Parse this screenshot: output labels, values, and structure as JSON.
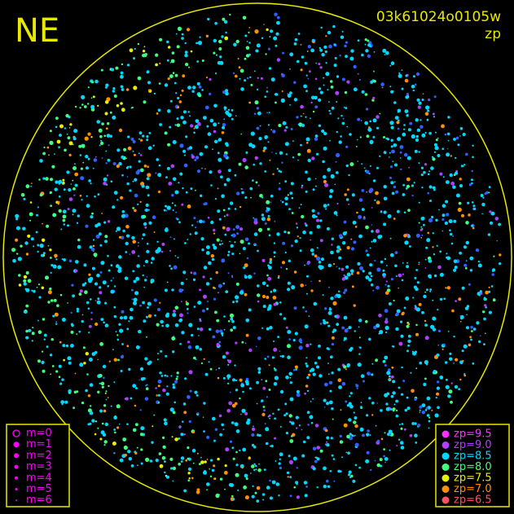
{
  "header": {
    "title": "NE",
    "frame_id": "03k61024o0105w",
    "subtitle": "zp"
  },
  "magnitude_legend": {
    "items": [
      {
        "label": "m=0"
      },
      {
        "label": "m=1"
      },
      {
        "label": "m=2"
      },
      {
        "label": "m=3"
      },
      {
        "label": "m=4"
      },
      {
        "label": "m=5"
      },
      {
        "label": "m=6"
      }
    ],
    "color": "#ff00ff"
  },
  "zp_legend": {
    "items": [
      {
        "label": "zp=9.5",
        "color": "#ff33ff"
      },
      {
        "label": "zp=9.0",
        "color": "#b040ff"
      },
      {
        "label": "zp=8.5",
        "color": "#00d8ff"
      },
      {
        "label": "zp=8.0",
        "color": "#40ff80"
      },
      {
        "label": "zp=7.5",
        "color": "#e8f000"
      },
      {
        "label": "zp=7.0",
        "color": "#ff9000"
      },
      {
        "label": "zp=6.5",
        "color": "#ff5060"
      }
    ]
  }
}
